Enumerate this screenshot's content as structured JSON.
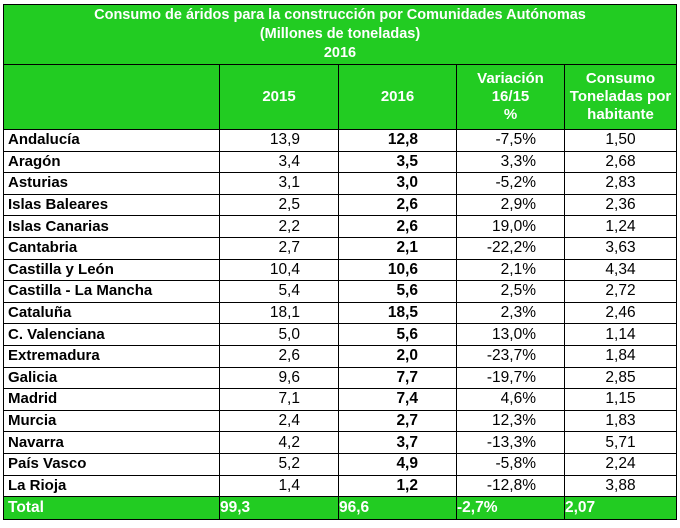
{
  "title": {
    "line1": "Consumo de áridos para la construcción por Comunidades Autónomas",
    "line2": "(Millones de toneladas)",
    "line3": "2016"
  },
  "columns": {
    "c2015": "2015",
    "c2016": "2016",
    "variation": [
      "Variación",
      "16/15",
      "%"
    ],
    "consumption": [
      "Consumo",
      "Toneladas por",
      "habitante"
    ]
  },
  "rows": [
    {
      "region": "Andalucía",
      "y2015": "13,9",
      "y2016": "12,8",
      "var": "-7,5%",
      "per_capita": "1,50"
    },
    {
      "region": "Aragón",
      "y2015": "3,4",
      "y2016": "3,5",
      "var": "3,3%",
      "per_capita": "2,68"
    },
    {
      "region": "Asturias",
      "y2015": "3,1",
      "y2016": "3,0",
      "var": "-5,2%",
      "per_capita": "2,83"
    },
    {
      "region": "Islas Baleares",
      "y2015": "2,5",
      "y2016": "2,6",
      "var": "2,9%",
      "per_capita": "2,36"
    },
    {
      "region": "Islas Canarias",
      "y2015": "2,2",
      "y2016": "2,6",
      "var": "19,0%",
      "per_capita": "1,24"
    },
    {
      "region": "Cantabria",
      "y2015": "2,7",
      "y2016": "2,1",
      "var": "-22,2%",
      "per_capita": "3,63"
    },
    {
      "region": "Castilla y León",
      "y2015": "10,4",
      "y2016": "10,6",
      "var": "2,1%",
      "per_capita": "4,34"
    },
    {
      "region": "Castilla - La Mancha",
      "y2015": "5,4",
      "y2016": "5,6",
      "var": "2,5%",
      "per_capita": "2,72"
    },
    {
      "region": "Cataluña",
      "y2015": "18,1",
      "y2016": "18,5",
      "var": "2,3%",
      "per_capita": "2,46"
    },
    {
      "region": "C. Valenciana",
      "y2015": "5,0",
      "y2016": "5,6",
      "var": "13,0%",
      "per_capita": "1,14"
    },
    {
      "region": "Extremadura",
      "y2015": "2,6",
      "y2016": "2,0",
      "var": "-23,7%",
      "per_capita": "1,84"
    },
    {
      "region": "Galicia",
      "y2015": "9,6",
      "y2016": "7,7",
      "var": "-19,7%",
      "per_capita": "2,85"
    },
    {
      "region": "Madrid",
      "y2015": "7,1",
      "y2016": "7,4",
      "var": "4,6%",
      "per_capita": "1,15"
    },
    {
      "region": "Murcia",
      "y2015": "2,4",
      "y2016": "2,7",
      "var": "12,3%",
      "per_capita": "1,83"
    },
    {
      "region": "Navarra",
      "y2015": "4,2",
      "y2016": "3,7",
      "var": "-13,3%",
      "per_capita": "5,71"
    },
    {
      "region": "País Vasco",
      "y2015": "5,2",
      "y2016": "4,9",
      "var": "-5,8%",
      "per_capita": "2,24"
    },
    {
      "region": "La Rioja",
      "y2015": "1,4",
      "y2016": "1,2",
      "var": "-12,8%",
      "per_capita": "3,88"
    }
  ],
  "total": {
    "region": "Total",
    "y2015": "99,3",
    "y2016": "96,6",
    "var": "-2,7%",
    "per_capita": "2,07"
  }
}
